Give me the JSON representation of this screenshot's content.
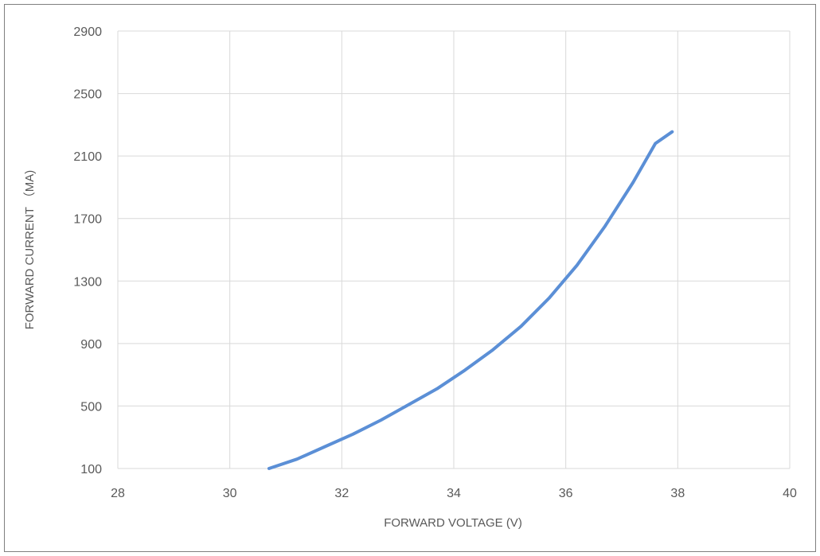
{
  "chart_data": {
    "type": "line",
    "title": "",
    "xlabel": "FORWARD VOLTAGE (V)",
    "ylabel": "FORWARD CURRENT （MA)",
    "xlim": [
      28,
      40
    ],
    "ylim": [
      100,
      2900
    ],
    "x_ticks": [
      28,
      30,
      32,
      34,
      36,
      38,
      40
    ],
    "y_ticks": [
      100,
      500,
      900,
      1300,
      1700,
      2100,
      2500,
      2900
    ],
    "grid": true,
    "legend": "none",
    "series": [
      {
        "color": "#5b8fd6",
        "x": [
          30.7,
          31.2,
          31.7,
          32.2,
          32.7,
          33.2,
          33.7,
          34.2,
          34.7,
          35.2,
          35.7,
          36.2,
          36.7,
          37.2,
          37.6,
          37.9
        ],
        "y": [
          100,
          160,
          240,
          320,
          410,
          510,
          610,
          730,
          860,
          1010,
          1190,
          1400,
          1650,
          1930,
          2180,
          2255
        ]
      }
    ]
  }
}
